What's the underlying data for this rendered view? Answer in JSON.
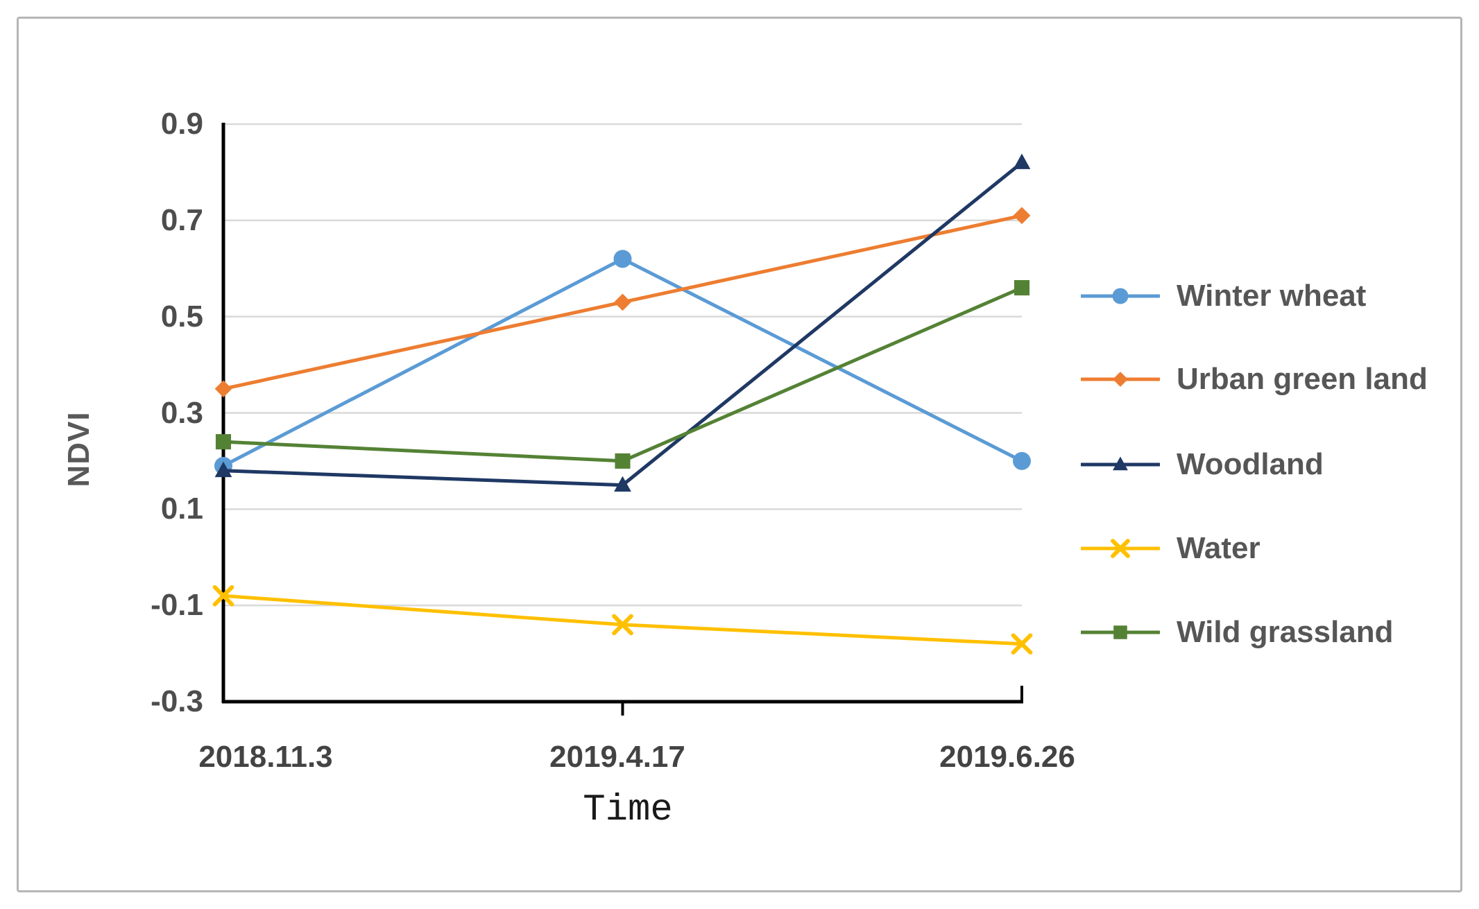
{
  "figure": {
    "background_color": "#ffffff",
    "border_color": "#b5b5b5"
  },
  "chart_data": {
    "type": "line",
    "title": "",
    "xlabel": "Time",
    "ylabel": "NDVI",
    "categories": [
      "2018.11.3",
      "2019.4.17",
      "2019.6.26"
    ],
    "ylim": [
      -0.3,
      0.9
    ],
    "y_tick_values": [
      0.9,
      0.7,
      0.5,
      0.3,
      0.1,
      -0.1,
      -0.3
    ],
    "y_tick_labels": [
      "0.9",
      "0.7",
      "0.5",
      "0.3",
      "0.1",
      "-0.1",
      "-0.3"
    ],
    "grid": "horizontal",
    "gridline_color": "#d9d9d9",
    "axis_color": "#000000",
    "tick_label_color": "#4d4d4d",
    "legend_position": "right",
    "series": [
      {
        "name": "Winter wheat",
        "color": "#5B9BD5",
        "marker": "circle",
        "values": [
          0.19,
          0.62,
          0.2
        ]
      },
      {
        "name": "Urban green land",
        "color": "#ED7D31",
        "marker": "diamond",
        "values": [
          0.35,
          0.53,
          0.71
        ]
      },
      {
        "name": "Woodland",
        "color": "#1F3864",
        "marker": "triangle",
        "values": [
          0.18,
          0.15,
          0.82
        ]
      },
      {
        "name": "Water",
        "color": "#FFC000",
        "marker": "x",
        "values": [
          -0.08,
          -0.14,
          -0.18
        ]
      },
      {
        "name": "Wild grassland",
        "color": "#548235",
        "marker": "square",
        "values": [
          0.24,
          0.2,
          0.56
        ]
      }
    ]
  }
}
